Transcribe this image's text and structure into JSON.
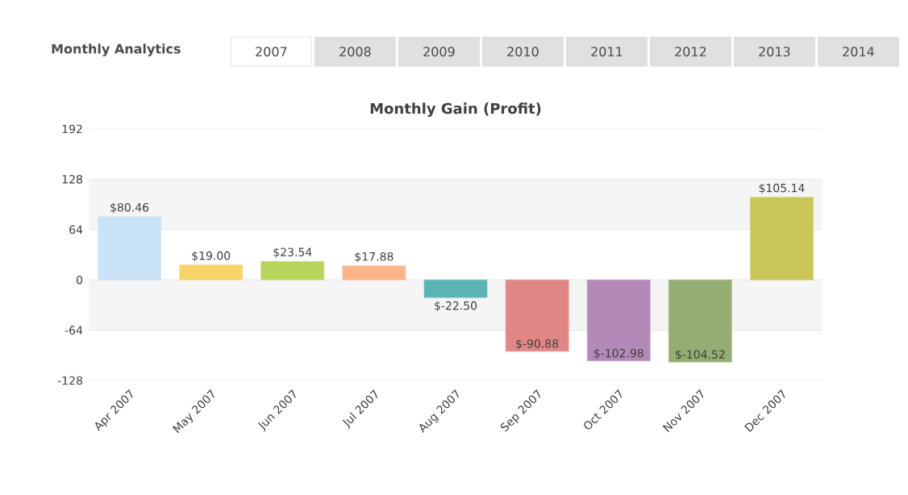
{
  "chart_data": {
    "type": "bar",
    "title": "Monthly Gain (Profit)",
    "annotations": [
      "Monthly Analytics",
      "2007",
      "2008",
      "2009",
      "2010",
      "2011",
      "2012",
      "2013",
      "2014"
    ],
    "categories": [
      "Apr 2007",
      "May 2007",
      "Jun 2007",
      "Jul 2007",
      "Aug 2007",
      "Sep 2007",
      "Oct 2007",
      "Nov 2007",
      "Dec 2007"
    ],
    "values": [
      80.46,
      19.0,
      23.54,
      17.88,
      -22.5,
      -90.88,
      -102.98,
      -104.52,
      105.14
    ],
    "value_labels": [
      "$80.46",
      "$19.00",
      "$23.54",
      "$17.88",
      "$-22.50",
      "$-90.88",
      "$-102.98",
      "$-104.52",
      "$105.14"
    ],
    "colors": [
      "#c9e2f5",
      "#f8d36a",
      "#b8d45c",
      "#fdb488",
      "#5ab4b4",
      "#e28585",
      "#b389b8",
      "#93ad72",
      "#cbc65a"
    ],
    "ylim": [
      -128,
      192
    ],
    "yticks": [
      -128,
      -64,
      0,
      64,
      128,
      192
    ],
    "bands": [
      {
        "axis": "y",
        "from": 64,
        "to": 128,
        "color": "#f5f5f5"
      },
      {
        "axis": "y",
        "from": -64,
        "to": 0,
        "color": "#f5f5f5"
      }
    ],
    "grid": "y"
  }
}
